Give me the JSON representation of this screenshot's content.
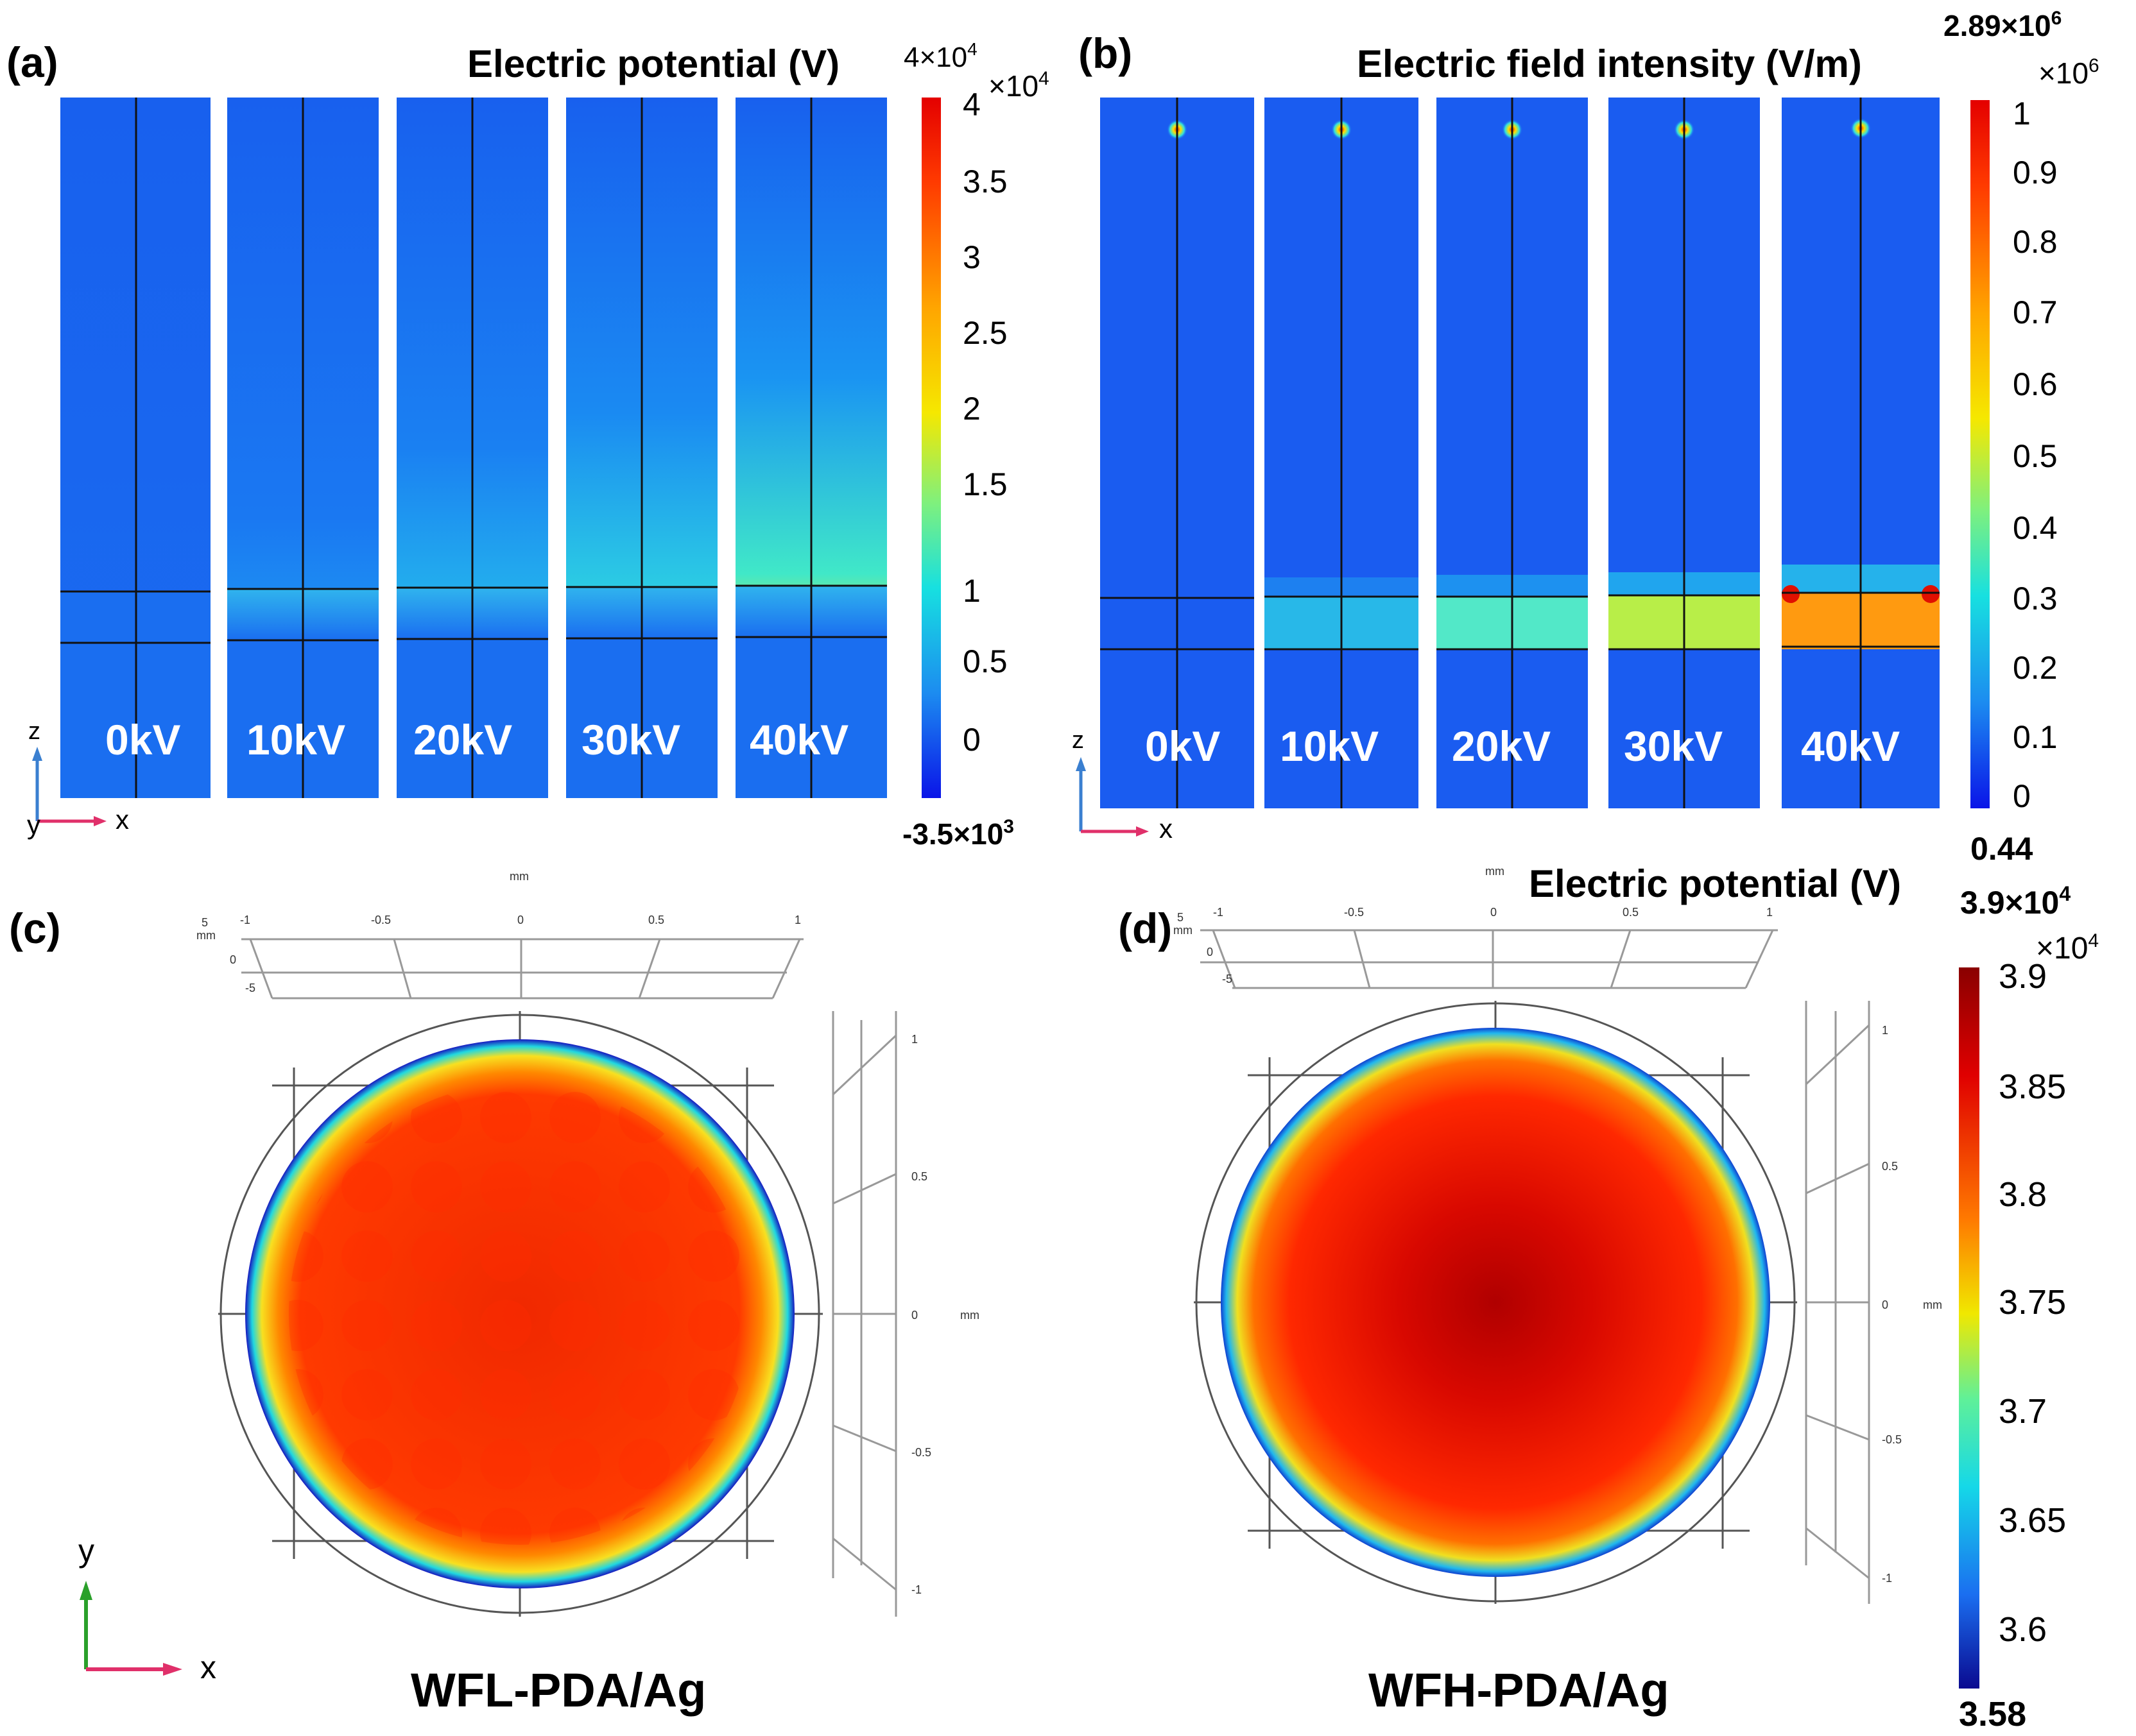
{
  "panel_a": {
    "label": "(a)",
    "title": "Electric potential (V)",
    "max_label_base": "4×10",
    "max_label_exp": "4",
    "mult_base": "×10",
    "mult_exp": "4",
    "min_label_base": "-3.5×10",
    "min_label_exp": "3",
    "ticks": [
      "4",
      "3.5",
      "3",
      "2.5",
      "2",
      "1.5",
      "1",
      "0.5",
      "0"
    ],
    "voltages": [
      "0kV",
      "10kV",
      "20kV",
      "30kV",
      "40kV"
    ],
    "axis_z": "z",
    "axis_x": "x",
    "axis_y": "y"
  },
  "panel_b": {
    "label": "(b)",
    "title": "Electric field intensity (V/m)",
    "max_label_base": "2.89×10",
    "max_label_exp": "6",
    "mult_base": "×10",
    "mult_exp": "6",
    "min_label": "0.44",
    "ticks": [
      "1",
      "0.9",
      "0.8",
      "0.7",
      "0.6",
      "0.5",
      "0.4",
      "0.3",
      "0.2",
      "0.1",
      "0"
    ],
    "voltages": [
      "0kV",
      "10kV",
      "20kV",
      "30kV",
      "40kV"
    ],
    "axis_z": "z",
    "axis_x": "x"
  },
  "panel_c": {
    "label": "(c)",
    "caption": "WFL-PDA/Ag",
    "unit_top": "mm",
    "unit_side": "mm",
    "ruler_top_ticks": [
      "-1",
      "-0.5",
      "0",
      "0.5",
      "1"
    ],
    "ruler_side_ticks": [
      "1",
      "0.5",
      "0",
      "-0.5",
      "-1"
    ],
    "ruler_depth_ticks": [
      "5",
      "0",
      "-5"
    ],
    "depth_unit": "mm",
    "axis_y": "y",
    "axis_x": "x"
  },
  "panel_d": {
    "label": "(d)",
    "caption": "WFH-PDA/Ag",
    "title": "Electric potential (V)",
    "max_label_base": "3.9×10",
    "max_label_exp": "4",
    "mult_base": "×10",
    "mult_exp": "4",
    "min_label": "3.58",
    "ticks": [
      "3.9",
      "3.85",
      "3.8",
      "3.75",
      "3.7",
      "3.65",
      "3.6"
    ],
    "unit_top": "mm",
    "unit_side": "mm",
    "ruler_top_ticks": [
      "-1",
      "-0.5",
      "0",
      "0.5",
      "1"
    ],
    "ruler_side_ticks": [
      "1",
      "0.5",
      "0",
      "-0.5",
      "-1"
    ],
    "ruler_depth_ticks": [
      "5",
      "0",
      "-5"
    ],
    "depth_unit": "mm"
  },
  "colors": {
    "background_blue": "#1a66ee",
    "jet_red": "#ff2000",
    "axis_z": "#3a7fd0",
    "axis_x": "#e0306a",
    "axis_y_green": "#2aa02a"
  }
}
